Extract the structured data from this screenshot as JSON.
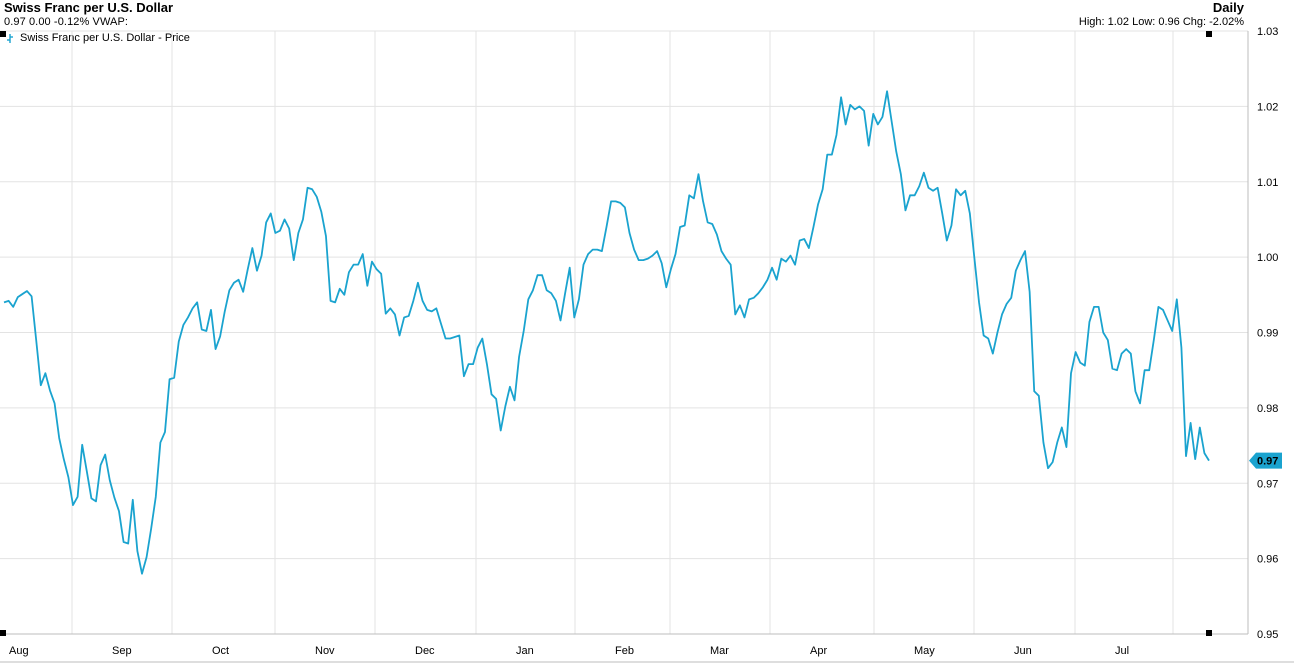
{
  "header": {
    "title": "Swiss Franc per U.S. Dollar",
    "stats": "0.97 0.00 -0.12% VWAP:",
    "interval": "Daily",
    "hlc": "High: 1.02 Low: 0.96 Chg: -2.02%"
  },
  "legend": {
    "label": "Swiss Franc per U.S. Dollar - Price",
    "icon": "price-series-icon"
  },
  "colors": {
    "line": "#1aa3cf",
    "grid": "#e3e3e3",
    "tag": "#1aa3cf"
  },
  "chart_data": {
    "type": "line",
    "title": "Swiss Franc per U.S. Dollar",
    "xlabel": "",
    "ylabel": "",
    "ylim": [
      0.95,
      1.03
    ],
    "y_ticks": [
      "1.03",
      "1.02",
      "1.01",
      "1.00",
      "0.99",
      "0.98",
      "0.97",
      "0.96",
      "0.95"
    ],
    "x_ticks": [
      "Aug",
      "Sep",
      "Oct",
      "Nov",
      "Dec",
      "Jan",
      "Feb",
      "Mar",
      "Apr",
      "May",
      "Jun",
      "Jul"
    ],
    "grid": true,
    "legend_position": "top-left",
    "last_value_label": "0.97",
    "series": [
      {
        "name": "Swiss Franc per U.S. Dollar - Price",
        "values": [
          0.994,
          0.9942,
          0.9934,
          0.9947,
          0.9951,
          0.9955,
          0.9948,
          0.989,
          0.983,
          0.9846,
          0.9823,
          0.9806,
          0.976,
          0.9732,
          0.9708,
          0.9671,
          0.9682,
          0.9751,
          0.9716,
          0.968,
          0.9676,
          0.9724,
          0.9738,
          0.9704,
          0.9681,
          0.9663,
          0.9622,
          0.962,
          0.9678,
          0.961,
          0.958,
          0.9602,
          0.964,
          0.9682,
          0.9754,
          0.9768,
          0.9838,
          0.984,
          0.9888,
          0.991,
          0.992,
          0.9932,
          0.994,
          0.9904,
          0.9902,
          0.993,
          0.9878,
          0.9895,
          0.9928,
          0.9956,
          0.9966,
          0.997,
          0.9954,
          0.9984,
          1.0012,
          0.9982,
          1.0002,
          1.0046,
          1.0058,
          1.0032,
          1.0035,
          1.005,
          1.0038,
          0.9996,
          1.0032,
          1.005,
          1.0092,
          1.009,
          1.008,
          1.006,
          1.0028,
          0.9942,
          0.994,
          0.9958,
          0.995,
          0.998,
          0.999,
          0.999,
          1.0004,
          0.9962,
          0.9994,
          0.9984,
          0.9978,
          0.9925,
          0.9932,
          0.9924,
          0.9896,
          0.992,
          0.9922,
          0.9942,
          0.9966,
          0.9942,
          0.993,
          0.9928,
          0.9932,
          0.9912,
          0.9892,
          0.9892,
          0.9894,
          0.9896,
          0.9842,
          0.9858,
          0.9858,
          0.988,
          0.9892,
          0.9858,
          0.9818,
          0.9812,
          0.977,
          0.9802,
          0.9828,
          0.981,
          0.9868,
          0.9902,
          0.9944,
          0.9956,
          0.9976,
          0.9976,
          0.9956,
          0.9952,
          0.9942,
          0.9916,
          0.9952,
          0.9986,
          0.992,
          0.9944,
          0.999,
          1.0004,
          1.001,
          1.001,
          1.0008,
          1.004,
          1.0074,
          1.0074,
          1.0072,
          1.0066,
          1.0032,
          1.001,
          0.9996,
          0.9996,
          0.9998,
          1.0002,
          1.0008,
          0.9992,
          0.996,
          0.9984,
          1.0004,
          1.004,
          1.0042,
          1.0082,
          1.0078,
          1.011,
          1.0074,
          1.0046,
          1.0044,
          1.003,
          1.0008,
          0.9998,
          0.999,
          0.9924,
          0.9936,
          0.992,
          0.9944,
          0.9946,
          0.9952,
          0.996,
          0.997,
          0.9986,
          0.997,
          0.9998,
          0.9994,
          1.0002,
          0.999,
          1.0022,
          1.0024,
          1.0012,
          1.004,
          1.007,
          1.009,
          1.0136,
          1.0136,
          1.0162,
          1.0212,
          1.0176,
          1.0202,
          1.0196,
          1.02,
          1.0194,
          1.0148,
          1.019,
          1.0176,
          1.0186,
          1.022,
          1.018,
          1.014,
          1.011,
          1.0062,
          1.0082,
          1.0082,
          1.0094,
          1.0112,
          1.0092,
          1.0088,
          1.0092,
          1.0058,
          1.0022,
          1.0042,
          1.009,
          1.0082,
          1.0088,
          1.0058,
          0.9998,
          0.994,
          0.9896,
          0.9892,
          0.9872,
          0.99,
          0.9924,
          0.9938,
          0.9946,
          0.9982,
          0.9996,
          1.0008,
          0.9954,
          0.9822,
          0.9816,
          0.9754,
          0.972,
          0.9728,
          0.9754,
          0.9774,
          0.9748,
          0.9846,
          0.9874,
          0.986,
          0.9856,
          0.9914,
          0.9934,
          0.9934,
          0.99,
          0.989,
          0.9852,
          0.985,
          0.9872,
          0.9878,
          0.9872,
          0.9822,
          0.9806,
          0.985,
          0.985,
          0.989,
          0.9934,
          0.993,
          0.9916,
          0.9902,
          0.9944,
          0.988,
          0.9736,
          0.978,
          0.9732,
          0.9774,
          0.974,
          0.973
        ]
      }
    ]
  }
}
